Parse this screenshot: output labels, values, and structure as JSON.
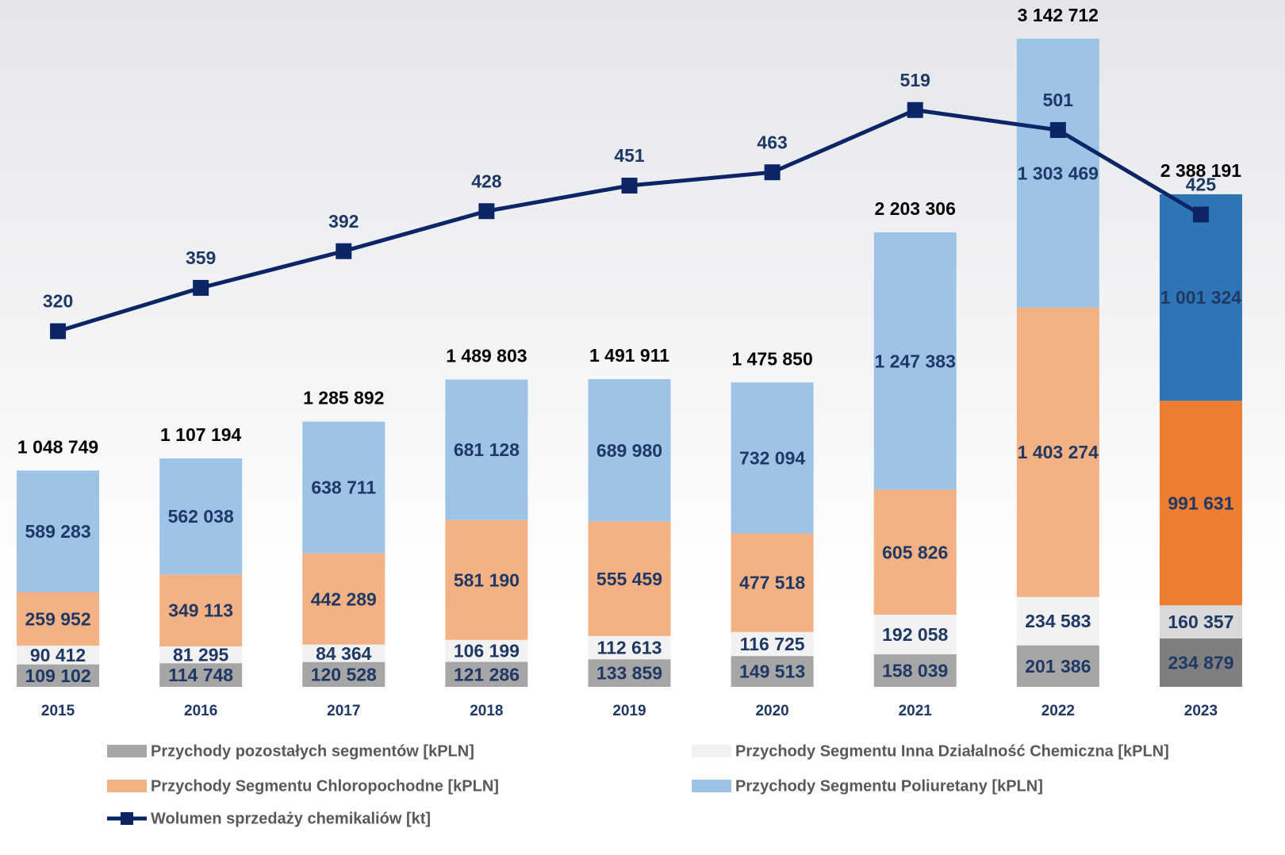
{
  "chart_data": {
    "type": "stacked-bar-line",
    "categories": [
      "2015",
      "2016",
      "2017",
      "2018",
      "2019",
      "2020",
      "2021",
      "2022",
      "2023"
    ],
    "ylim": [
      0,
      3330000
    ],
    "y2lim": [
      0,
      618
    ],
    "series": [
      {
        "name": "Przychody pozostałych segmentów [kPLN]",
        "color": "#a6a6a6",
        "colors": [
          "#a6a6a6",
          "#a6a6a6",
          "#a6a6a6",
          "#a6a6a6",
          "#a6a6a6",
          "#a6a6a6",
          "#a6a6a6",
          "#a6a6a6",
          "#7f7f7f"
        ],
        "values": [
          109102,
          114748,
          120528,
          121286,
          133859,
          149513,
          158039,
          201386,
          234879
        ],
        "value_labels": [
          "109 102",
          "114 748",
          "120 528",
          "121 286",
          "133 859",
          "149 513",
          "158 039",
          "201 386",
          "234 879"
        ]
      },
      {
        "name": "Przychody Segmentu Inna Działalność Chemiczna [kPLN]",
        "color": "#f2f2f2",
        "colors": [
          "#f2f2f2",
          "#f2f2f2",
          "#f2f2f2",
          "#f2f2f2",
          "#f2f2f2",
          "#f2f2f2",
          "#f2f2f2",
          "#f2f2f2",
          "#d9d9d9"
        ],
        "values": [
          90412,
          81295,
          84364,
          106199,
          112613,
          116725,
          192058,
          234583,
          160357
        ],
        "value_labels": [
          "90 412",
          "81 295",
          "84 364",
          "106 199",
          "112 613",
          "116 725",
          "192 058",
          "234 583",
          "160 357"
        ]
      },
      {
        "name": "Przychody Segmentu Chloropochodne [kPLN]",
        "color": "#f4b183",
        "colors": [
          "#f4b183",
          "#f4b183",
          "#f4b183",
          "#f4b183",
          "#f4b183",
          "#f4b183",
          "#f4b183",
          "#f4b183",
          "#ed7d31"
        ],
        "values": [
          259952,
          349113,
          442289,
          581190,
          555459,
          477518,
          605826,
          1403274,
          991631
        ],
        "value_labels": [
          "259 952",
          "349 113",
          "442 289",
          "581 190",
          "555 459",
          "477 518",
          "605 826",
          "1 403 274",
          "991 631"
        ]
      },
      {
        "name": "Przychody Segmentu Poliuretany [kPLN]",
        "color": "#9dc3e6",
        "colors": [
          "#9dc3e6",
          "#9dc3e6",
          "#9dc3e6",
          "#9dc3e6",
          "#9dc3e6",
          "#9dc3e6",
          "#9dc3e6",
          "#9dc3e6",
          "#2e75b6"
        ],
        "values": [
          589283,
          562038,
          638711,
          681128,
          689980,
          732094,
          1247383,
          1303469,
          1001324
        ],
        "value_labels": [
          "589 283",
          "562 038",
          "638 711",
          "681 128",
          "689 980",
          "732 094",
          "1 247 383",
          "1 303 469",
          "1 001 324"
        ]
      },
      {
        "name": "Wolumen sprzedaży chemikaliów [kt]",
        "color": "#0b2566",
        "axis": "y2",
        "values": [
          320,
          359,
          392,
          428,
          451,
          463,
          519,
          501,
          425
        ]
      }
    ],
    "totals": {
      "values": [
        1048749,
        1107194,
        1285892,
        1489803,
        1491911,
        1475850,
        2203306,
        3142712,
        2388191
      ],
      "value_labels": [
        "1 048 749",
        "1 107 194",
        "1 285 892",
        "1 489 803",
        "1 491 911",
        "1 475 850",
        "2 203 306",
        "3 142 712",
        "2 388 191"
      ]
    }
  }
}
